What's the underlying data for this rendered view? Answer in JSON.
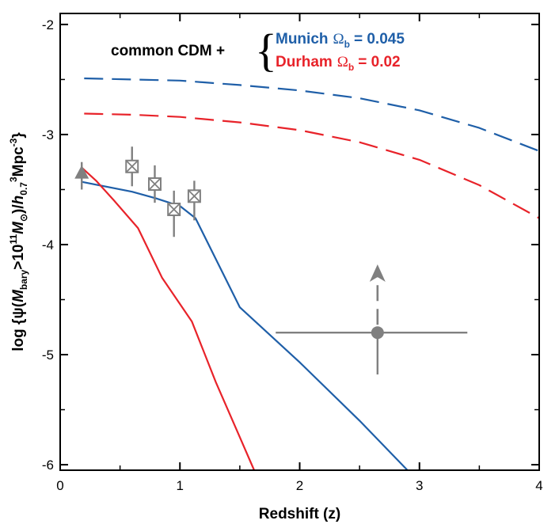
{
  "chart_data": {
    "type": "line",
    "title": "",
    "xlabel": "Redshift (z)",
    "ylabel": {
      "prefix": "log {ψ(",
      "m": "M",
      "m_sub": "bary",
      "gt": ">10",
      "exp": "11",
      "m2": "M",
      "sun": "⊙",
      "mid": ")/",
      "h": "h",
      "h_sub": "0.7",
      "h_sup": "3",
      "unit": "Mpc",
      "unit_sup": "-3",
      "suffix": "}"
    },
    "xlim": [
      0,
      4
    ],
    "ylim": [
      -6.05,
      -1.9
    ],
    "xticks": [
      0,
      1,
      2,
      3,
      4
    ],
    "xtick_labels": [
      "0",
      "1",
      "2",
      "3",
      "4"
    ],
    "yticks": [
      -2,
      -3,
      -4,
      -5,
      -6
    ],
    "ytick_labels": [
      "-2",
      "-3",
      "-4",
      "-5",
      "-6"
    ],
    "grid": false,
    "colors": {
      "munich": "#1f5fa8",
      "durham": "#e8232a",
      "data": "#808080"
    },
    "legend": {
      "prefix": "common CDM +",
      "brace": "{",
      "entries": [
        {
          "name": "Munich",
          "symbol": "Ω",
          "sub": "b",
          "value": "= 0.045",
          "color": "#1f5fa8"
        },
        {
          "name": "Durham",
          "symbol": "Ω",
          "sub": "b",
          "value": "= 0.02",
          "color": "#e8232a"
        }
      ]
    },
    "series": [
      {
        "name": "Munich",
        "style": "solid",
        "color": "#1f5fa8",
        "x": [
          0.18,
          0.6,
          0.8,
          1.0,
          1.13,
          1.5,
          2.0,
          2.5,
          2.9
        ],
        "y": [
          -3.43,
          -3.52,
          -3.58,
          -3.65,
          -3.76,
          -4.57,
          -5.07,
          -5.6,
          -6.05
        ]
      },
      {
        "name": "Durham",
        "style": "solid",
        "color": "#e8232a",
        "x": [
          0.18,
          0.3,
          0.45,
          0.65,
          0.85,
          1.1,
          1.3,
          1.5,
          1.62
        ],
        "y": [
          -3.3,
          -3.42,
          -3.6,
          -3.85,
          -4.3,
          -4.7,
          -5.25,
          -5.75,
          -6.05
        ]
      },
      {
        "name": "Munich",
        "style": "dashed",
        "color": "#1f5fa8",
        "x": [
          0.2,
          0.6,
          1.0,
          1.5,
          2.0,
          2.5,
          3.0,
          3.5,
          4.0
        ],
        "y": [
          -2.49,
          -2.5,
          -2.51,
          -2.55,
          -2.6,
          -2.67,
          -2.78,
          -2.94,
          -3.15
        ]
      },
      {
        "name": "Durham",
        "style": "dashed",
        "color": "#e8232a",
        "x": [
          0.2,
          0.6,
          1.0,
          1.5,
          2.0,
          2.5,
          3.0,
          3.5,
          4.0
        ],
        "y": [
          -2.81,
          -2.82,
          -2.84,
          -2.89,
          -2.96,
          -3.07,
          -3.23,
          -3.46,
          -3.76
        ]
      }
    ],
    "points": [
      {
        "marker": "triangle",
        "x": 0.18,
        "y": -3.35,
        "yerr": [
          0.1,
          0.15
        ]
      },
      {
        "marker": "boxcross",
        "x": 0.6,
        "y": -3.29,
        "yerr": [
          0.18,
          0.18
        ]
      },
      {
        "marker": "boxcross",
        "x": 0.79,
        "y": -3.45,
        "yerr": [
          0.17,
          0.17
        ]
      },
      {
        "marker": "boxcross",
        "x": 0.95,
        "y": -3.68,
        "yerr": [
          0.17,
          0.25
        ]
      },
      {
        "marker": "boxcross",
        "x": 1.12,
        "y": -3.56,
        "yerr": [
          0.14,
          0.22
        ]
      },
      {
        "marker": "circle",
        "x": 2.65,
        "y": -4.8,
        "xerr": [
          0.85,
          0.75
        ],
        "yerr": [
          0,
          0.38
        ],
        "lower_limit_to": -4.18
      }
    ]
  }
}
